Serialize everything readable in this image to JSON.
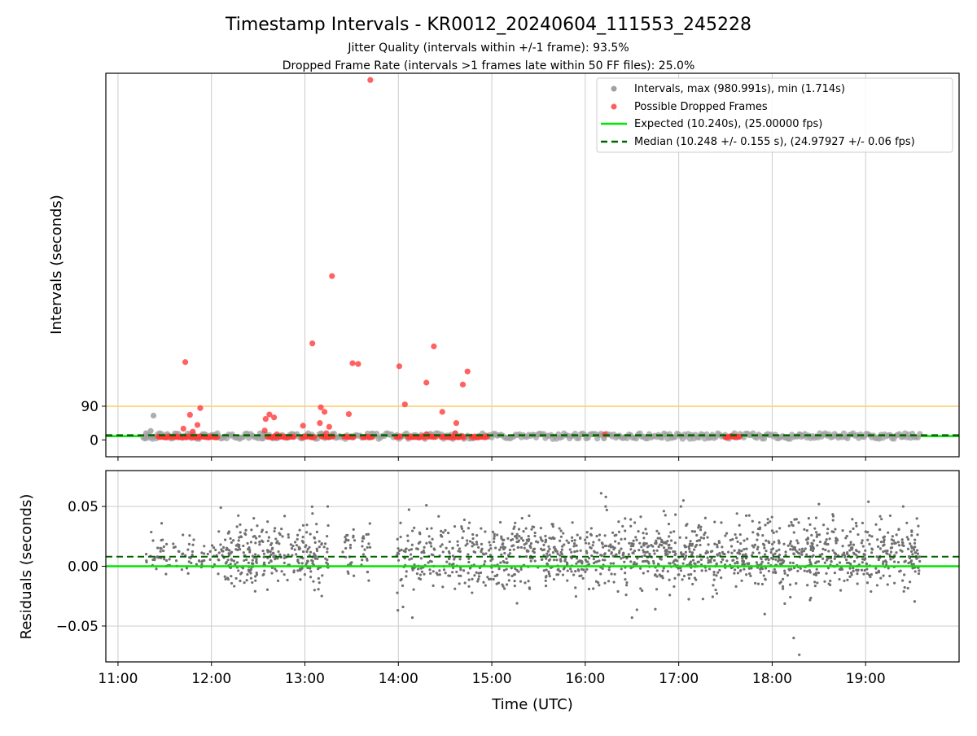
{
  "figure": {
    "title": "Timestamp Intervals - KR0012_20240604_111553_245228",
    "subtitle_1": "Jitter Quality (intervals within +/-1 frame): 93.5%",
    "subtitle_2": "Dropped Frame Rate (intervals >1 frames late within 50 FF files): 25.0%"
  },
  "colors": {
    "intervals": "#808080",
    "dropped": "#ff3b3b",
    "expected": "#00e600",
    "median": "#006400",
    "threshold": "#ffcc66",
    "grid": "#cccccc"
  },
  "chart_data": [
    {
      "type": "scatter",
      "ylabel": "Intervals (seconds)",
      "xlim": [
        10.87,
        20.0
      ],
      "ylim": [
        -45,
        980
      ],
      "y_ticks": [
        0,
        90
      ],
      "y_tick_labels": [
        "0",
        "90"
      ],
      "threshold_line": 90,
      "expected_value": 10.24,
      "median_value": 10.248,
      "grid": "x",
      "legend_position": "top-right",
      "legend": [
        {
          "label": "Intervals, max (980.991s), min (1.714s)",
          "kind": "marker",
          "color": "#a0a0a0"
        },
        {
          "label": "Possible Dropped Frames",
          "kind": "marker",
          "color": "#ff5c5c"
        },
        {
          "label": "Expected (10.240s), (25.00000 fps)",
          "kind": "line",
          "color": "#00e600"
        },
        {
          "label": "Median (10.248 +/- 0.155 s), (24.97927 +/- 0.06 fps)",
          "kind": "dashed",
          "color": "#006400"
        }
      ],
      "series": [
        {
          "name": "Intervals, max (980.991s), min (1.714s)",
          "band": {
            "x_start": 11.27,
            "x_end": 19.58,
            "y_low": 2,
            "y_high": 18
          },
          "extra_points": [
            {
              "x": 11.38,
              "y": 65
            },
            {
              "x": 11.3,
              "y": 18
            },
            {
              "x": 11.35,
              "y": 24
            },
            {
              "x": 11.33,
              "y": 12
            },
            {
              "x": 11.29,
              "y": 5
            },
            {
              "x": 11.37,
              "y": 8
            },
            {
              "x": 16.2,
              "y": 4
            },
            {
              "x": 18.3,
              "y": 14
            },
            {
              "x": 12.55,
              "y": 4
            }
          ]
        },
        {
          "name": "Possible Dropped Frames",
          "points": [
            {
              "x": 11.72,
              "y": 208
            },
            {
              "x": 11.77,
              "y": 67
            },
            {
              "x": 11.85,
              "y": 40
            },
            {
              "x": 11.88,
              "y": 85
            },
            {
              "x": 11.7,
              "y": 30
            },
            {
              "x": 11.8,
              "y": 22
            },
            {
              "x": 12.58,
              "y": 56
            },
            {
              "x": 12.62,
              "y": 68
            },
            {
              "x": 12.67,
              "y": 60
            },
            {
              "x": 12.57,
              "y": 25
            },
            {
              "x": 12.7,
              "y": 15
            },
            {
              "x": 12.98,
              "y": 38
            },
            {
              "x": 13.08,
              "y": 258
            },
            {
              "x": 13.16,
              "y": 45
            },
            {
              "x": 13.17,
              "y": 87
            },
            {
              "x": 13.21,
              "y": 75
            },
            {
              "x": 13.26,
              "y": 35
            },
            {
              "x": 13.23,
              "y": 18
            },
            {
              "x": 13.29,
              "y": 438
            },
            {
              "x": 13.47,
              "y": 69
            },
            {
              "x": 13.51,
              "y": 205
            },
            {
              "x": 13.57,
              "y": 203
            },
            {
              "x": 13.7,
              "y": 962
            },
            {
              "x": 14.01,
              "y": 197
            },
            {
              "x": 14.07,
              "y": 95
            },
            {
              "x": 14.3,
              "y": 153
            },
            {
              "x": 14.3,
              "y": 15
            },
            {
              "x": 14.38,
              "y": 250
            },
            {
              "x": 14.47,
              "y": 75
            },
            {
              "x": 14.62,
              "y": 45
            },
            {
              "x": 14.69,
              "y": 148
            },
            {
              "x": 14.74,
              "y": 183
            },
            {
              "x": 14.61,
              "y": 18
            },
            {
              "x": 16.21,
              "y": 15
            }
          ],
          "clusters": [
            {
              "x_start": 11.43,
              "x_end": 11.72,
              "y": 8
            },
            {
              "x_start": 11.74,
              "x_end": 12.06,
              "y": 8
            },
            {
              "x_start": 12.6,
              "x_end": 12.88,
              "y": 8
            },
            {
              "x_start": 12.97,
              "x_end": 13.1,
              "y": 8
            },
            {
              "x_start": 13.18,
              "x_end": 13.3,
              "y": 8
            },
            {
              "x_start": 13.42,
              "x_end": 13.52,
              "y": 8
            },
            {
              "x_start": 13.62,
              "x_end": 13.72,
              "y": 8
            },
            {
              "x_start": 13.98,
              "x_end": 14.02,
              "y": 8
            },
            {
              "x_start": 14.1,
              "x_end": 14.28,
              "y": 8
            },
            {
              "x_start": 14.32,
              "x_end": 14.4,
              "y": 8
            },
            {
              "x_start": 14.46,
              "x_end": 14.7,
              "y": 8
            },
            {
              "x_start": 14.78,
              "x_end": 14.95,
              "y": 8
            },
            {
              "x_start": 17.5,
              "x_end": 17.65,
              "y": 8
            }
          ]
        }
      ]
    },
    {
      "type": "scatter",
      "xlabel": "Time (UTC)",
      "ylabel": "Residuals (seconds)",
      "xlim": [
        10.87,
        20.0
      ],
      "ylim": [
        -0.08,
        0.08
      ],
      "x_ticks": [
        11,
        12,
        13,
        14,
        15,
        16,
        17,
        18,
        19
      ],
      "x_tick_labels": [
        "11:00",
        "12:00",
        "13:00",
        "14:00",
        "15:00",
        "16:00",
        "17:00",
        "18:00",
        "19:00"
      ],
      "y_ticks": [
        0.05,
        0.0,
        -0.05
      ],
      "y_tick_labels": [
        "0.05",
        "0.00",
        "−0.05"
      ],
      "expected_value": 0.0,
      "median_value": 0.008,
      "grid": "both",
      "series": [
        {
          "name": "Residuals",
          "mean": 0.009,
          "std": 0.014,
          "x_segments": [
            [
              11.27,
              12.12
            ],
            [
              12.12,
              12.62
            ],
            [
              12.62,
              13.25
            ],
            [
              13.4,
              13.7
            ],
            [
              13.98,
              14.95
            ],
            [
              14.95,
              19.58
            ]
          ],
          "outliers": [
            {
              "x": 14.15,
              "y": -0.043
            },
            {
              "x": 14.05,
              "y": -0.034
            },
            {
              "x": 16.17,
              "y": 0.061
            },
            {
              "x": 16.22,
              "y": 0.058
            },
            {
              "x": 16.5,
              "y": -0.043
            },
            {
              "x": 17.05,
              "y": 0.055
            },
            {
              "x": 18.23,
              "y": -0.06
            },
            {
              "x": 18.29,
              "y": -0.074
            },
            {
              "x": 19.03,
              "y": 0.054
            },
            {
              "x": 18.5,
              "y": 0.052
            },
            {
              "x": 14.3,
              "y": 0.051
            },
            {
              "x": 12.1,
              "y": 0.049
            },
            {
              "x": 17.92,
              "y": -0.04
            },
            {
              "x": 15.27,
              "y": -0.031
            }
          ]
        }
      ]
    }
  ]
}
